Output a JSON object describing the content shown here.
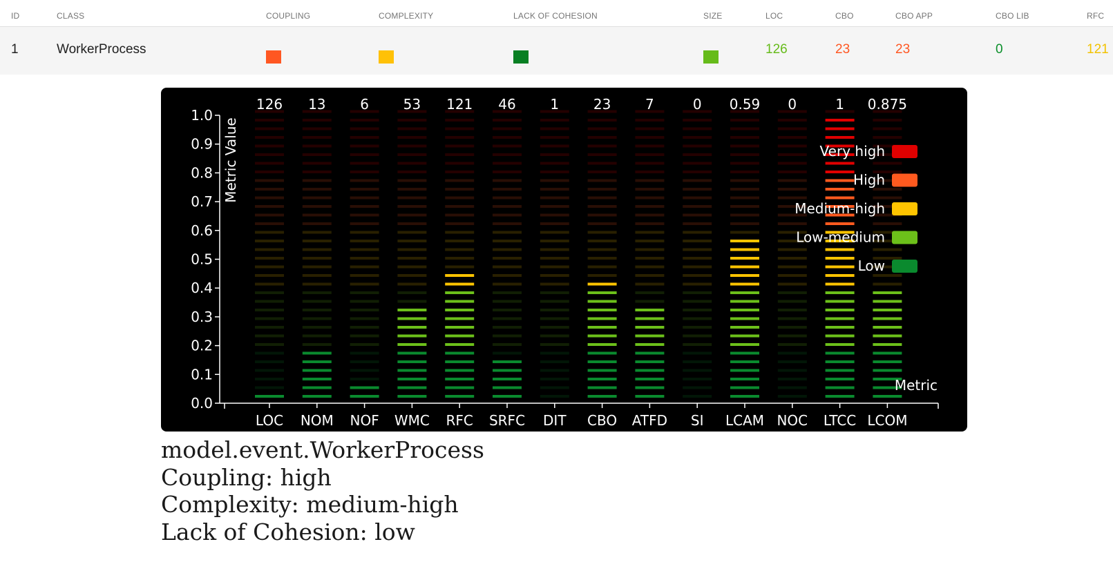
{
  "table": {
    "headers": {
      "id": "ID",
      "class": "CLASS",
      "coupling": "COUPLING",
      "complexity": "COMPLEXITY",
      "lack_of_cohesion": "LACK OF COHESION",
      "size": "SIZE",
      "loc": "LOC",
      "cbo": "CBO",
      "cbo_app": "CBO APP",
      "cbo_lib": "CBO LIB",
      "rfc": "RFC"
    },
    "row": {
      "id": "1",
      "class": "WorkerProcess",
      "coupling_color": "#ff5722",
      "complexity_color": "#ffc107",
      "lack_of_cohesion_color": "#087f23",
      "size_color": "#66bb1a",
      "loc": "126",
      "loc_color": "#66bb1a",
      "cbo": "23",
      "cbo_color": "#ff5722",
      "cbo_app": "23",
      "cbo_app_color": "#ff5722",
      "cbo_lib": "0",
      "cbo_lib_color": "#0b8f2b",
      "rfc": "121",
      "rfc_color": "#f2c200"
    }
  },
  "chart_data": {
    "type": "bar",
    "title": "",
    "xlabel": "Metric",
    "ylabel": "Metric Value",
    "ylim": [
      0,
      1.0
    ],
    "yticks": [
      "0.0",
      "0.1",
      "0.2",
      "0.3",
      "0.4",
      "0.5",
      "0.6",
      "0.7",
      "0.8",
      "0.9",
      "1.0"
    ],
    "categories": [
      "LOC",
      "NOM",
      "NOF",
      "WMC",
      "RFC",
      "SRFC",
      "DIT",
      "CBO",
      "ATFD",
      "SI",
      "LCAM",
      "NOC",
      "LTCC",
      "LCOM"
    ],
    "raw_values": [
      "126",
      "13",
      "6",
      "53",
      "121",
      "46",
      "1",
      "23",
      "7",
      "0",
      "0.59",
      "0",
      "1",
      "0.875"
    ],
    "values": [
      0.05,
      0.2,
      0.08,
      0.35,
      0.47,
      0.17,
      0.0,
      0.44,
      0.35,
      0.0,
      0.59,
      0.0,
      1.0,
      0.41
    ],
    "legend": [
      {
        "label": "Very high",
        "color": "#e00000"
      },
      {
        "label": "High",
        "color": "#ff5a1f"
      },
      {
        "label": "Medium-high",
        "color": "#ffc400"
      },
      {
        "label": "Low-medium",
        "color": "#6cc01a"
      },
      {
        "label": "Low",
        "color": "#0a8a2e"
      }
    ],
    "legend_position": "top-right",
    "grid": false
  },
  "info": {
    "class_name": "model.event.WorkerProcess",
    "coupling": "Coupling: high",
    "complexity": "Complexity: medium-high",
    "lack_of_cohesion": "Lack of Cohesion: low"
  }
}
